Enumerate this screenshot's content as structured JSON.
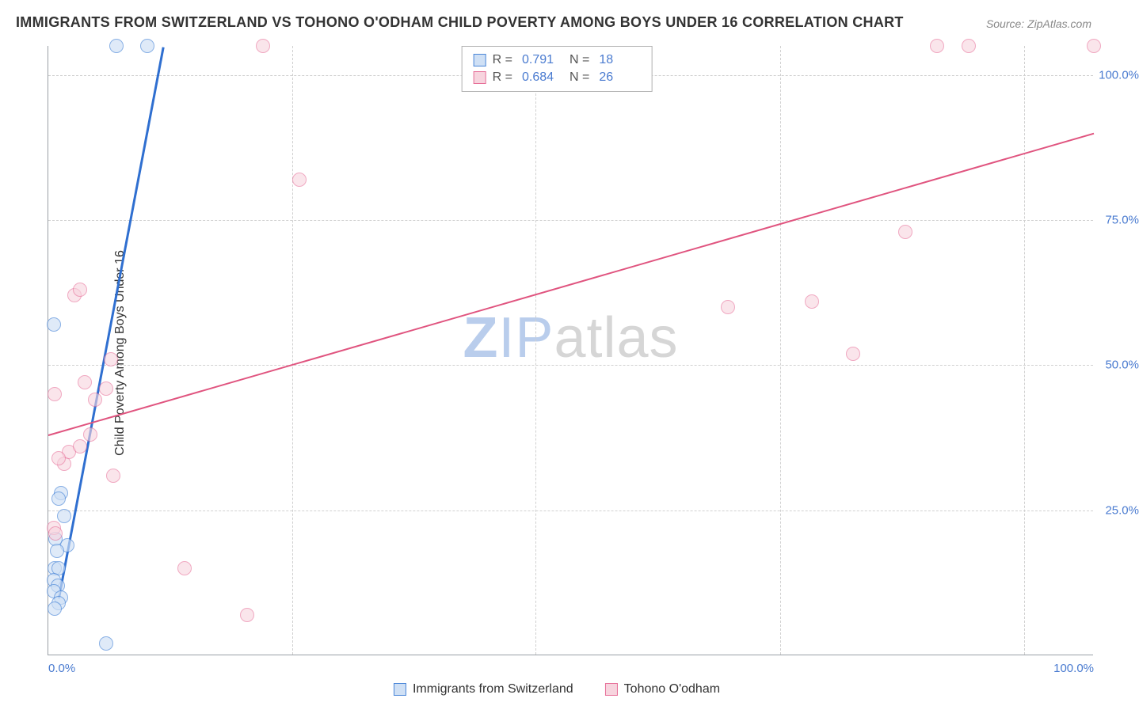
{
  "title": "IMMIGRANTS FROM SWITZERLAND VS TOHONO O'ODHAM CHILD POVERTY AMONG BOYS UNDER 16 CORRELATION CHART",
  "source": "Source: ZipAtlas.com",
  "y_axis_title": "Child Poverty Among Boys Under 16",
  "watermark_zip": "ZIP",
  "watermark_atlas": "atlas",
  "chart": {
    "type": "scatter",
    "xlim": [
      0,
      100
    ],
    "ylim": [
      0,
      105
    ],
    "y_ticks": [
      25,
      50,
      75,
      100
    ],
    "y_tick_labels": [
      "25.0%",
      "50.0%",
      "75.0%",
      "100.0%"
    ],
    "x_ticks": [
      0,
      100
    ],
    "x_tick_labels": [
      "0.0%",
      "100.0%"
    ],
    "x_gridlines": [
      23.3,
      46.6,
      70.0,
      93.3
    ],
    "background_color": "#ffffff",
    "grid_color": "#d0d0d0",
    "axis_color": "#9aa0a6",
    "tick_label_color": "#4a7bd0",
    "tick_fontsize": 15,
    "marker_radius": 9,
    "series": [
      {
        "name": "Immigrants from Switzerland",
        "fill": "#cfe0f5",
        "stroke": "#4a86d8",
        "fill_opacity": 0.65,
        "R": "0.791",
        "N": "18",
        "trend": {
          "x1": 1,
          "y1": 10,
          "x2": 11,
          "y2": 105,
          "color": "#2f6fd0",
          "width": 2.5
        },
        "points": [
          {
            "x": 0.5,
            "y": 57
          },
          {
            "x": 1.2,
            "y": 28
          },
          {
            "x": 1.0,
            "y": 27
          },
          {
            "x": 1.5,
            "y": 24
          },
          {
            "x": 0.7,
            "y": 20
          },
          {
            "x": 1.8,
            "y": 19
          },
          {
            "x": 0.8,
            "y": 18
          },
          {
            "x": 0.6,
            "y": 15
          },
          {
            "x": 1.0,
            "y": 15
          },
          {
            "x": 0.5,
            "y": 13
          },
          {
            "x": 0.9,
            "y": 12
          },
          {
            "x": 0.5,
            "y": 11
          },
          {
            "x": 1.2,
            "y": 10
          },
          {
            "x": 1.0,
            "y": 9
          },
          {
            "x": 0.6,
            "y": 8
          },
          {
            "x": 5.5,
            "y": 2
          },
          {
            "x": 6.5,
            "y": 105
          },
          {
            "x": 9.5,
            "y": 105
          }
        ]
      },
      {
        "name": "Tohono O'odham",
        "fill": "#f7d4de",
        "stroke": "#e77099",
        "fill_opacity": 0.6,
        "R": "0.684",
        "N": "26",
        "trend": {
          "x1": 0,
          "y1": 38,
          "x2": 100,
          "y2": 90,
          "color": "#e0547f",
          "width": 2
        },
        "points": [
          {
            "x": 0.5,
            "y": 22
          },
          {
            "x": 0.7,
            "y": 21
          },
          {
            "x": 1.5,
            "y": 33
          },
          {
            "x": 2.0,
            "y": 35
          },
          {
            "x": 1.0,
            "y": 34
          },
          {
            "x": 0.6,
            "y": 45
          },
          {
            "x": 3.5,
            "y": 47
          },
          {
            "x": 5.5,
            "y": 46
          },
          {
            "x": 4.5,
            "y": 44
          },
          {
            "x": 3.0,
            "y": 36
          },
          {
            "x": 4.0,
            "y": 38
          },
          {
            "x": 6.0,
            "y": 51
          },
          {
            "x": 2.5,
            "y": 62
          },
          {
            "x": 3.0,
            "y": 63
          },
          {
            "x": 24.0,
            "y": 82
          },
          {
            "x": 6.2,
            "y": 31
          },
          {
            "x": 13.0,
            "y": 15
          },
          {
            "x": 19.0,
            "y": 7
          },
          {
            "x": 20.5,
            "y": 105
          },
          {
            "x": 65.0,
            "y": 60
          },
          {
            "x": 73.0,
            "y": 61
          },
          {
            "x": 77.0,
            "y": 52
          },
          {
            "x": 82.0,
            "y": 73
          },
          {
            "x": 85.0,
            "y": 105
          },
          {
            "x": 88.0,
            "y": 105
          },
          {
            "x": 100.0,
            "y": 105
          }
        ]
      }
    ]
  },
  "legend_top": {
    "r_label": "R  =",
    "n_label": "N  ="
  },
  "legend_bottom": {
    "series1": "Immigrants from Switzerland",
    "series2": "Tohono O'odham"
  }
}
